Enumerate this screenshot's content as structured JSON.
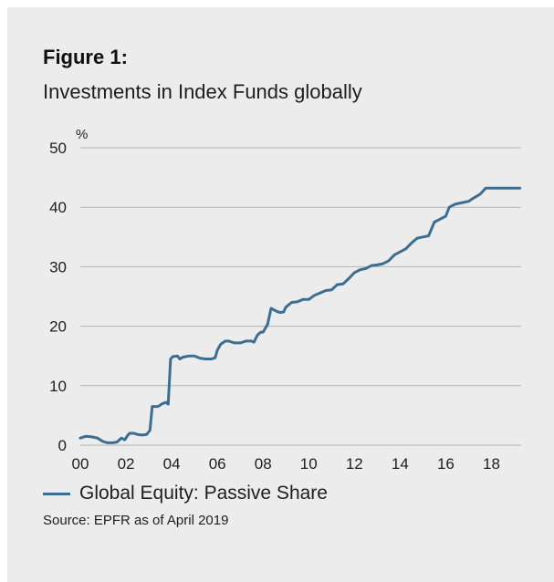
{
  "figure_label": "Figure 1:",
  "figure_title": "Investments in Index Funds globally",
  "source": "Source: EPFR as of April 2019",
  "colors": {
    "background": "#ececec",
    "line": "#3c6e91",
    "grid": "#b4b4b4",
    "text": "#1e1e1e"
  },
  "chart_data": {
    "type": "line",
    "unit_label": "%",
    "ylim": [
      0,
      50
    ],
    "yticks": [
      0,
      10,
      20,
      30,
      40,
      50
    ],
    "xlim": [
      2000,
      2019.3
    ],
    "xticks": [
      {
        "value": 2000,
        "label": "00"
      },
      {
        "value": 2002,
        "label": "02"
      },
      {
        "value": 2004,
        "label": "04"
      },
      {
        "value": 2006,
        "label": "06"
      },
      {
        "value": 2008,
        "label": "08"
      },
      {
        "value": 2010,
        "label": "10"
      },
      {
        "value": 2012,
        "label": "12"
      },
      {
        "value": 2014,
        "label": "14"
      },
      {
        "value": 2016,
        "label": "16"
      },
      {
        "value": 2018,
        "label": "18"
      }
    ],
    "grid": true,
    "legend": "bottom-left",
    "series": [
      {
        "name": "Global Equity: Passive Share",
        "x": [
          2000.0,
          2000.25,
          2000.5,
          2000.75,
          2001.0,
          2001.2,
          2001.4,
          2001.6,
          2001.8,
          2001.95,
          2002.05,
          2002.15,
          2002.35,
          2002.5,
          2002.7,
          2002.9,
          2003.05,
          2003.15,
          2003.25,
          2003.4,
          2003.6,
          2003.75,
          2003.85,
          2003.95,
          2004.05,
          2004.25,
          2004.35,
          2004.5,
          2004.75,
          2005.0,
          2005.25,
          2005.5,
          2005.75,
          2005.9,
          2006.0,
          2006.15,
          2006.35,
          2006.5,
          2006.75,
          2007.0,
          2007.25,
          2007.5,
          2007.6,
          2007.75,
          2007.9,
          2008.0,
          2008.2,
          2008.35,
          2008.6,
          2008.75,
          2008.9,
          2009.0,
          2009.25,
          2009.5,
          2009.75,
          2009.85,
          2010.0,
          2010.25,
          2010.5,
          2010.75,
          2011.0,
          2011.25,
          2011.5,
          2011.75,
          2012.0,
          2012.25,
          2012.5,
          2012.75,
          2013.0,
          2013.25,
          2013.5,
          2013.75,
          2014.0,
          2014.25,
          2014.5,
          2014.75,
          2015.0,
          2015.25,
          2015.5,
          2015.75,
          2016.0,
          2016.15,
          2016.4,
          2016.75,
          2017.0,
          2017.2,
          2017.5,
          2017.75,
          2018.0,
          2018.25,
          2018.5,
          2018.75,
          2019.0,
          2019.25
        ],
        "values": [
          1.2,
          1.5,
          1.4,
          1.2,
          0.6,
          0.4,
          0.4,
          0.5,
          1.2,
          0.9,
          1.5,
          2.0,
          2.0,
          1.8,
          1.7,
          1.8,
          2.5,
          6.5,
          6.5,
          6.5,
          7.0,
          7.2,
          6.9,
          14.5,
          14.9,
          15.0,
          14.5,
          14.8,
          15.0,
          15.0,
          14.6,
          14.5,
          14.5,
          14.7,
          16.0,
          17.0,
          17.5,
          17.5,
          17.2,
          17.2,
          17.5,
          17.5,
          17.3,
          18.5,
          19.0,
          19.0,
          20.3,
          23.0,
          22.5,
          22.3,
          22.4,
          23.2,
          24.0,
          24.1,
          24.5,
          24.5,
          24.5,
          25.2,
          25.6,
          26.0,
          26.1,
          27.0,
          27.1,
          28.0,
          29.0,
          29.5,
          29.7,
          30.2,
          30.3,
          30.5,
          31.0,
          32.0,
          32.5,
          33.0,
          34.0,
          34.8,
          35.0,
          35.2,
          37.5,
          38.0,
          38.5,
          40.0,
          40.5,
          40.8,
          41.0,
          41.5,
          42.2,
          43.2,
          43.2,
          43.2,
          43.2,
          43.2,
          43.2,
          43.2
        ]
      }
    ]
  }
}
